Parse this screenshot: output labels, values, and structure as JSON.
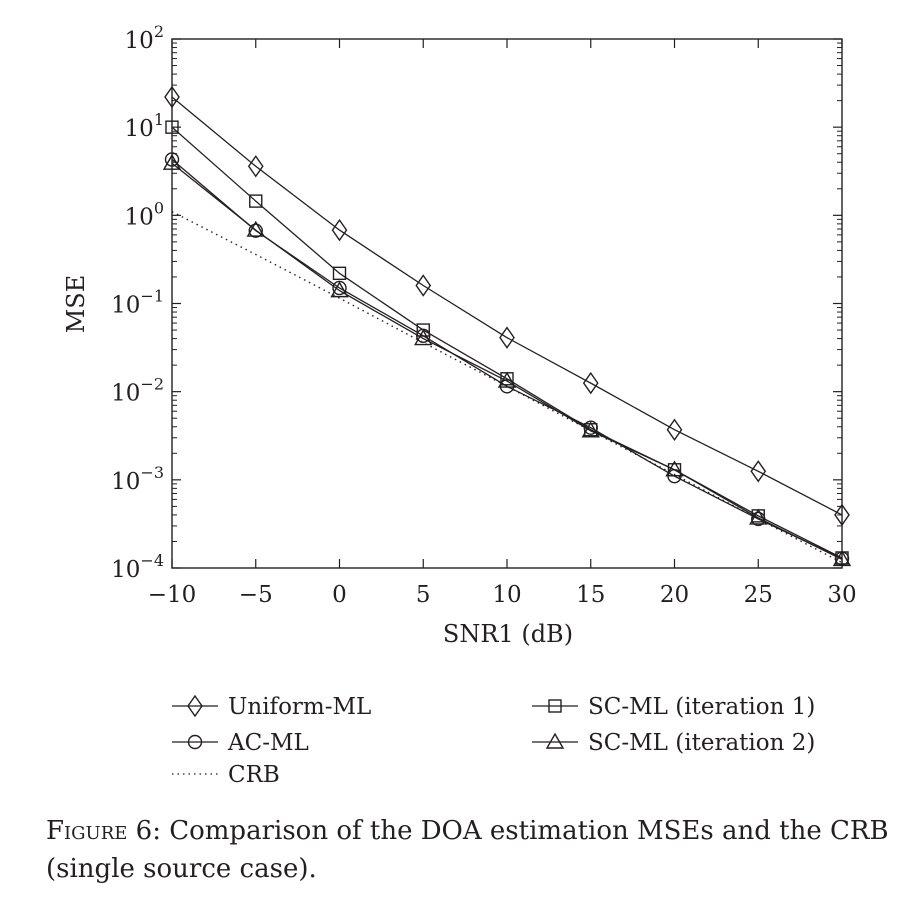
{
  "chart_data": {
    "type": "line",
    "xlabel": "SNR1 (dB)",
    "ylabel": "MSE",
    "xlim": [
      -10,
      30
    ],
    "ylim": [
      0.0001,
      100
    ],
    "yscale": "log",
    "grid": false,
    "legend_placement": "below",
    "x": [
      -10,
      -5,
      0,
      5,
      10,
      15,
      20,
      25,
      30
    ],
    "x_ticks": [
      -10,
      -5,
      0,
      5,
      10,
      15,
      20,
      25,
      30
    ],
    "x_tick_labels": [
      "−10",
      "−5",
      "0",
      "5",
      "10",
      "15",
      "20",
      "25",
      "30"
    ],
    "y_ticks": [
      {
        "value": 100,
        "base": "10",
        "exp": "2"
      },
      {
        "value": 10,
        "base": "10",
        "exp": "1"
      },
      {
        "value": 1,
        "base": "10",
        "exp": "0"
      },
      {
        "value": 0.1,
        "base": "10",
        "exp": "−1"
      },
      {
        "value": 0.01,
        "base": "10",
        "exp": "−2"
      },
      {
        "value": 0.001,
        "base": "10",
        "exp": "−3"
      },
      {
        "value": 0.0001,
        "base": "10",
        "exp": "−4"
      }
    ],
    "series": [
      {
        "name": "Uniform-ML",
        "marker": "diamond",
        "dash": "solid",
        "values": [
          22,
          3.6,
          0.68,
          0.16,
          0.041,
          0.0125,
          0.0037,
          0.00125,
          0.0004
        ]
      },
      {
        "name": "SC-ML (iteration 1)",
        "marker": "square",
        "dash": "solid",
        "values": [
          10,
          1.45,
          0.22,
          0.05,
          0.014,
          0.0037,
          0.0013,
          0.00039,
          0.00013
        ]
      },
      {
        "name": "AC-ML",
        "marker": "circle",
        "dash": "solid",
        "values": [
          4.3,
          0.67,
          0.15,
          0.043,
          0.0115,
          0.0039,
          0.0011,
          0.00036,
          0.000128
        ]
      },
      {
        "name": "SC-ML (iteration 2)",
        "marker": "triangle",
        "dash": "solid",
        "values": [
          3.9,
          0.68,
          0.14,
          0.04,
          0.0132,
          0.0036,
          0.0013,
          0.00037,
          0.000125
        ]
      },
      {
        "name": "CRB",
        "marker": "none",
        "dash": "dotted",
        "values": [
          1.1,
          0.36,
          0.115,
          0.036,
          0.0115,
          0.0036,
          0.00115,
          0.00036,
          0.000115
        ]
      }
    ],
    "legend_order": [
      0,
      1,
      2,
      3,
      4
    ]
  },
  "caption": {
    "prefix": "Figure 6:",
    "text": " Comparison of the DOA estimation MSEs and the CRB (single source case)."
  },
  "colors": {
    "ink": "#231f20",
    "background": "#ffffff"
  }
}
